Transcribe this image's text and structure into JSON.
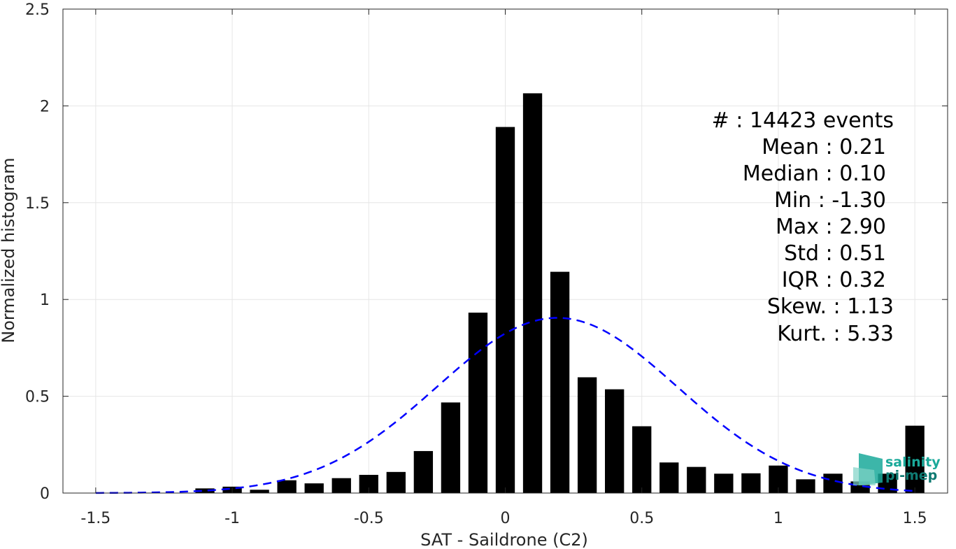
{
  "chart_data": {
    "type": "bar",
    "xlabel": "SAT - Saildrone (C2)",
    "ylabel": "Normalized histogram",
    "xlim": [
      -1.62,
      1.62
    ],
    "ylim": [
      0,
      2.5
    ],
    "xticks": [
      -1.5,
      -1,
      -0.5,
      0,
      0.5,
      1,
      1.5
    ],
    "xtick_labels": [
      "-1.5",
      "-1",
      "-0.5",
      "0",
      "0.5",
      "1",
      "1.5"
    ],
    "yticks": [
      0,
      0.5,
      1,
      1.5,
      2,
      2.5
    ],
    "ytick_labels": [
      "0",
      "0.5",
      "1",
      "1.5",
      "2",
      "2.5"
    ],
    "grid": true,
    "bar_width": 0.07,
    "bar_color": "#000000",
    "bins": [
      {
        "x": -1.5,
        "y": 0.0
      },
      {
        "x": -1.4,
        "y": 0.0
      },
      {
        "x": -1.3,
        "y": 0.002
      },
      {
        "x": -1.2,
        "y": 0.0
      },
      {
        "x": -1.1,
        "y": 0.024
      },
      {
        "x": -1.0,
        "y": 0.033
      },
      {
        "x": -0.9,
        "y": 0.017
      },
      {
        "x": -0.8,
        "y": 0.066
      },
      {
        "x": -0.7,
        "y": 0.05
      },
      {
        "x": -0.6,
        "y": 0.077
      },
      {
        "x": -0.5,
        "y": 0.094
      },
      {
        "x": -0.4,
        "y": 0.109
      },
      {
        "x": -0.3,
        "y": 0.217
      },
      {
        "x": -0.2,
        "y": 0.468
      },
      {
        "x": -0.1,
        "y": 0.932
      },
      {
        "x": 0.0,
        "y": 1.891
      },
      {
        "x": 0.1,
        "y": 2.065
      },
      {
        "x": 0.2,
        "y": 1.143
      },
      {
        "x": 0.3,
        "y": 0.598
      },
      {
        "x": 0.4,
        "y": 0.536
      },
      {
        "x": 0.5,
        "y": 0.345
      },
      {
        "x": 0.6,
        "y": 0.158
      },
      {
        "x": 0.7,
        "y": 0.135
      },
      {
        "x": 0.8,
        "y": 0.1
      },
      {
        "x": 0.9,
        "y": 0.102
      },
      {
        "x": 1.0,
        "y": 0.142
      },
      {
        "x": 1.1,
        "y": 0.071
      },
      {
        "x": 1.2,
        "y": 0.1
      },
      {
        "x": 1.3,
        "y": 0.06
      },
      {
        "x": 1.4,
        "y": 0.1
      },
      {
        "x": 1.5,
        "y": 0.348
      }
    ],
    "fit_curve": {
      "type": "gaussian",
      "mean": 0.19,
      "peak": 0.905,
      "sigma": 0.44,
      "x_range": [
        -1.5,
        1.5
      ],
      "color": "#0000ff",
      "style": "dashed"
    },
    "stats_lines": [
      "#  : 14423 events",
      "Mean : 0.21",
      "Median : 0.10",
      "Min : -1.30",
      "Max : 2.90",
      "Std : 0.51",
      "IQR : 0.32",
      "Skew. : 1.13",
      "Kurt. : 5.33"
    ],
    "stats_position": "top-right"
  },
  "logo": {
    "line1": "salinity",
    "line2": "pi-mep",
    "colors": [
      "#1aa99a",
      "#0f7a72",
      "#7fd3c6"
    ]
  }
}
